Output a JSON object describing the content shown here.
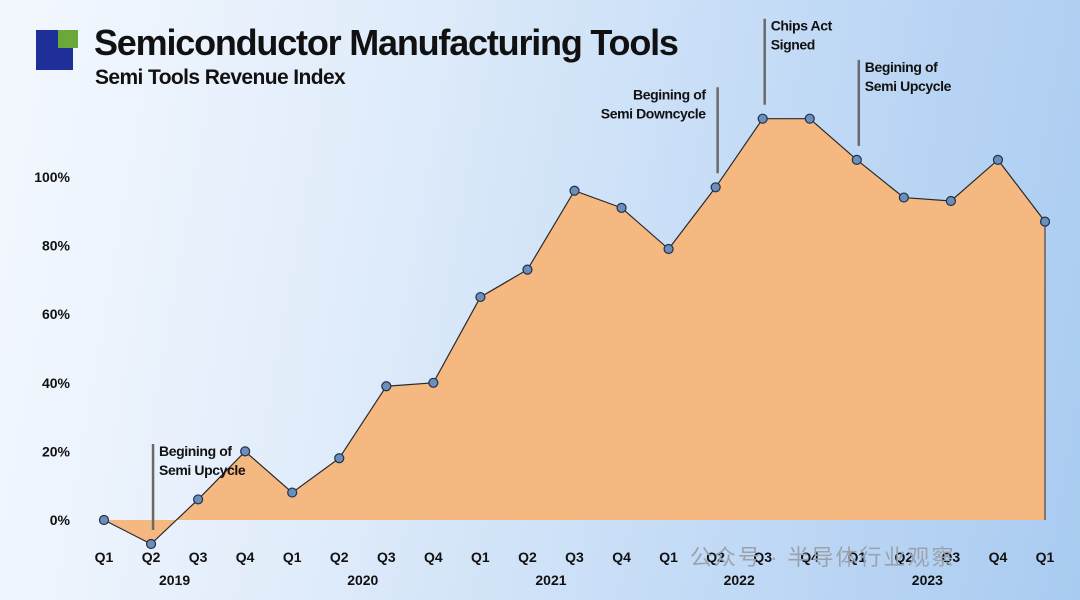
{
  "header": {
    "title": "Semiconductor Manufacturing Tools",
    "subtitle": "Semi Tools Revenue Index"
  },
  "watermark": "公众号 · 半导体行业观察",
  "chart_data": {
    "type": "area",
    "title": "Semiconductor Manufacturing Tools",
    "subtitle": "Semi Tools Revenue Index",
    "xlabel": "",
    "ylabel": "",
    "x": [
      "Q1 2019",
      "Q2 2019",
      "Q3 2019",
      "Q4 2019",
      "Q1 2020",
      "Q2 2020",
      "Q3 2020",
      "Q4 2020",
      "Q1 2021",
      "Q2 2021",
      "Q3 2021",
      "Q4 2021",
      "Q1 2022",
      "Q2 2022",
      "Q3 2022",
      "Q4 2022",
      "Q1 2023",
      "Q2 2023",
      "Q3 2023",
      "Q4 2023",
      "Q1 2024"
    ],
    "quarter_labels": [
      "Q1",
      "Q2",
      "Q3",
      "Q4",
      "Q1",
      "Q2",
      "Q3",
      "Q4",
      "Q1",
      "Q2",
      "Q3",
      "Q4",
      "Q1",
      "Q2",
      "Q3",
      "Q4",
      "Q1",
      "Q2",
      "Q3",
      "Q4",
      "Q1"
    ],
    "year_labels": [
      {
        "label": "2019",
        "center_index": 1.5
      },
      {
        "label": "2020",
        "center_index": 5.5
      },
      {
        "label": "2021",
        "center_index": 9.5
      },
      {
        "label": "2022",
        "center_index": 13.5
      },
      {
        "label": "2023",
        "center_index": 17.5
      }
    ],
    "series": [
      {
        "values": [
          0,
          -7,
          6,
          20,
          8,
          18,
          39,
          40,
          65,
          73,
          96,
          91,
          79,
          97,
          117,
          117,
          105,
          94,
          93,
          105,
          87
        ]
      }
    ],
    "yticks": [
      0,
      20,
      40,
      60,
      80,
      100
    ],
    "ytick_labels": [
      "0%",
      "20%",
      "40%",
      "60%",
      "80%",
      "100%"
    ],
    "ylim": [
      -10,
      125
    ],
    "grid": false,
    "legend": "none",
    "annotations": [
      {
        "lines": [
          "Begining of",
          "Semi Upcycle"
        ],
        "x_index": 1
      },
      {
        "lines": [
          "Begining of",
          "Semi Downcycle"
        ],
        "x_index": 13
      },
      {
        "lines": [
          "Chips Act",
          "Signed"
        ],
        "x_index": 14
      },
      {
        "lines": [
          "Begining of",
          "Semi Upcycle"
        ],
        "x_index": 16
      }
    ],
    "colors": {
      "area": "#f5b880",
      "line": "#2a2a2a",
      "marker_fill": "#6b8fb8",
      "marker_stroke": "#1e3050"
    }
  }
}
